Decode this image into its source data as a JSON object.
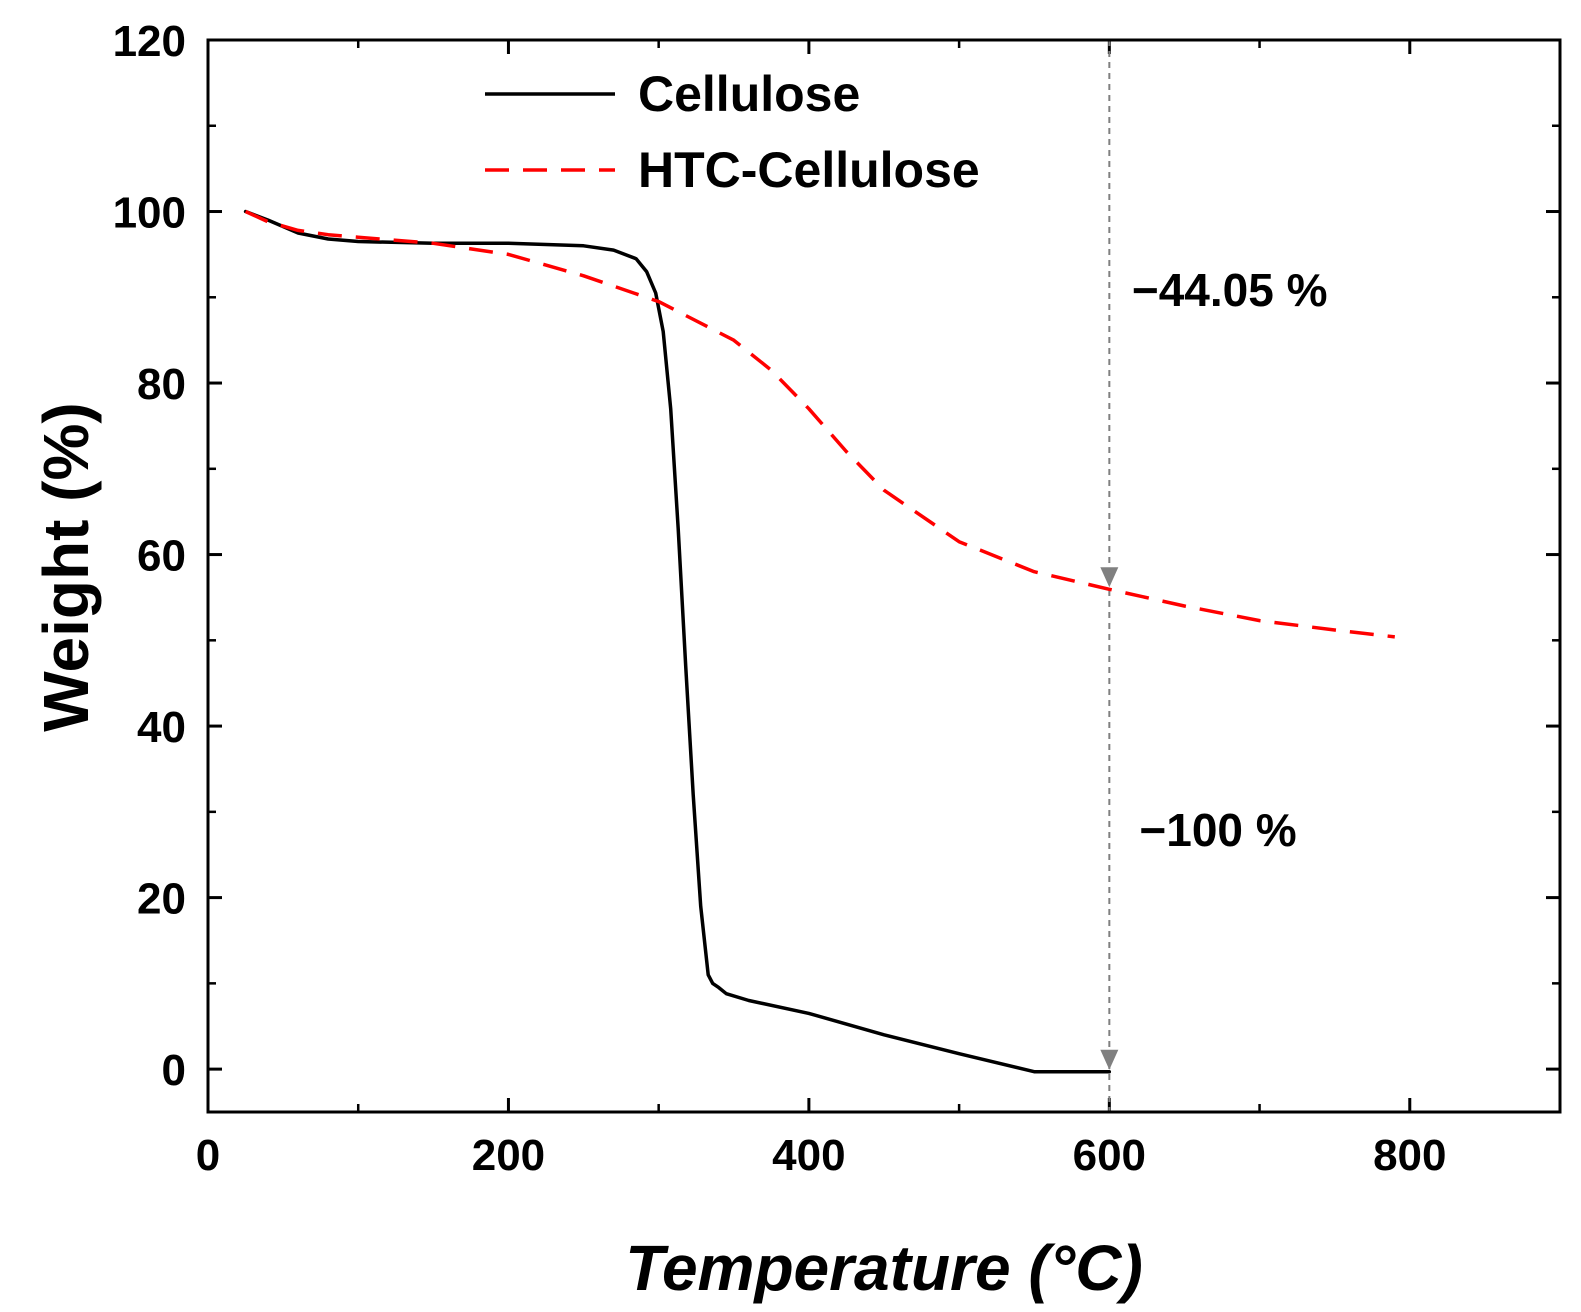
{
  "chart_data": {
    "type": "line",
    "title": "",
    "xlabel": "Temperature (°C)",
    "ylabel": "Weight (%)",
    "xlim": [
      0,
      900
    ],
    "ylim": [
      -5,
      120
    ],
    "xticks": [
      0,
      200,
      400,
      600,
      800
    ],
    "yticks": [
      0,
      20,
      40,
      60,
      80,
      100,
      120
    ],
    "grid": false,
    "legend_position": "top-center",
    "series": [
      {
        "name": "Cellulose",
        "color": "#000000",
        "style": "solid",
        "x": [
          25,
          40,
          60,
          80,
          100,
          150,
          200,
          250,
          270,
          285,
          292,
          298,
          303,
          308,
          313,
          318,
          323,
          328,
          333,
          336,
          340,
          345,
          360,
          400,
          450,
          500,
          550,
          575,
          600
        ],
        "y": [
          100,
          99,
          97.5,
          96.8,
          96.5,
          96.3,
          96.3,
          96.0,
          95.5,
          94.5,
          93.0,
          90.5,
          86,
          77,
          63,
          47,
          32,
          19,
          11,
          10,
          9.5,
          8.8,
          8.0,
          6.5,
          4.0,
          1.8,
          -0.3,
          -0.3,
          -0.3
        ]
      },
      {
        "name": "HTC-Cellulose",
        "color": "#ff0000",
        "style": "dashed",
        "x": [
          25,
          40,
          60,
          80,
          100,
          150,
          200,
          250,
          300,
          350,
          375,
          400,
          425,
          450,
          500,
          550,
          600,
          650,
          700,
          750,
          790
        ],
        "y": [
          100,
          98.8,
          97.8,
          97.3,
          97.0,
          96.3,
          95.0,
          92.5,
          89.5,
          85.0,
          81.5,
          77.0,
          72.0,
          67.5,
          61.5,
          58.0,
          55.95,
          54.0,
          52.3,
          51.2,
          50.4
        ]
      }
    ],
    "reference_line": {
      "x": 600
    },
    "annotations": [
      {
        "text": "−44.05 %",
        "x": 615,
        "y": 89
      },
      {
        "text": "−100 %",
        "x": 620,
        "y": 26
      }
    ]
  }
}
